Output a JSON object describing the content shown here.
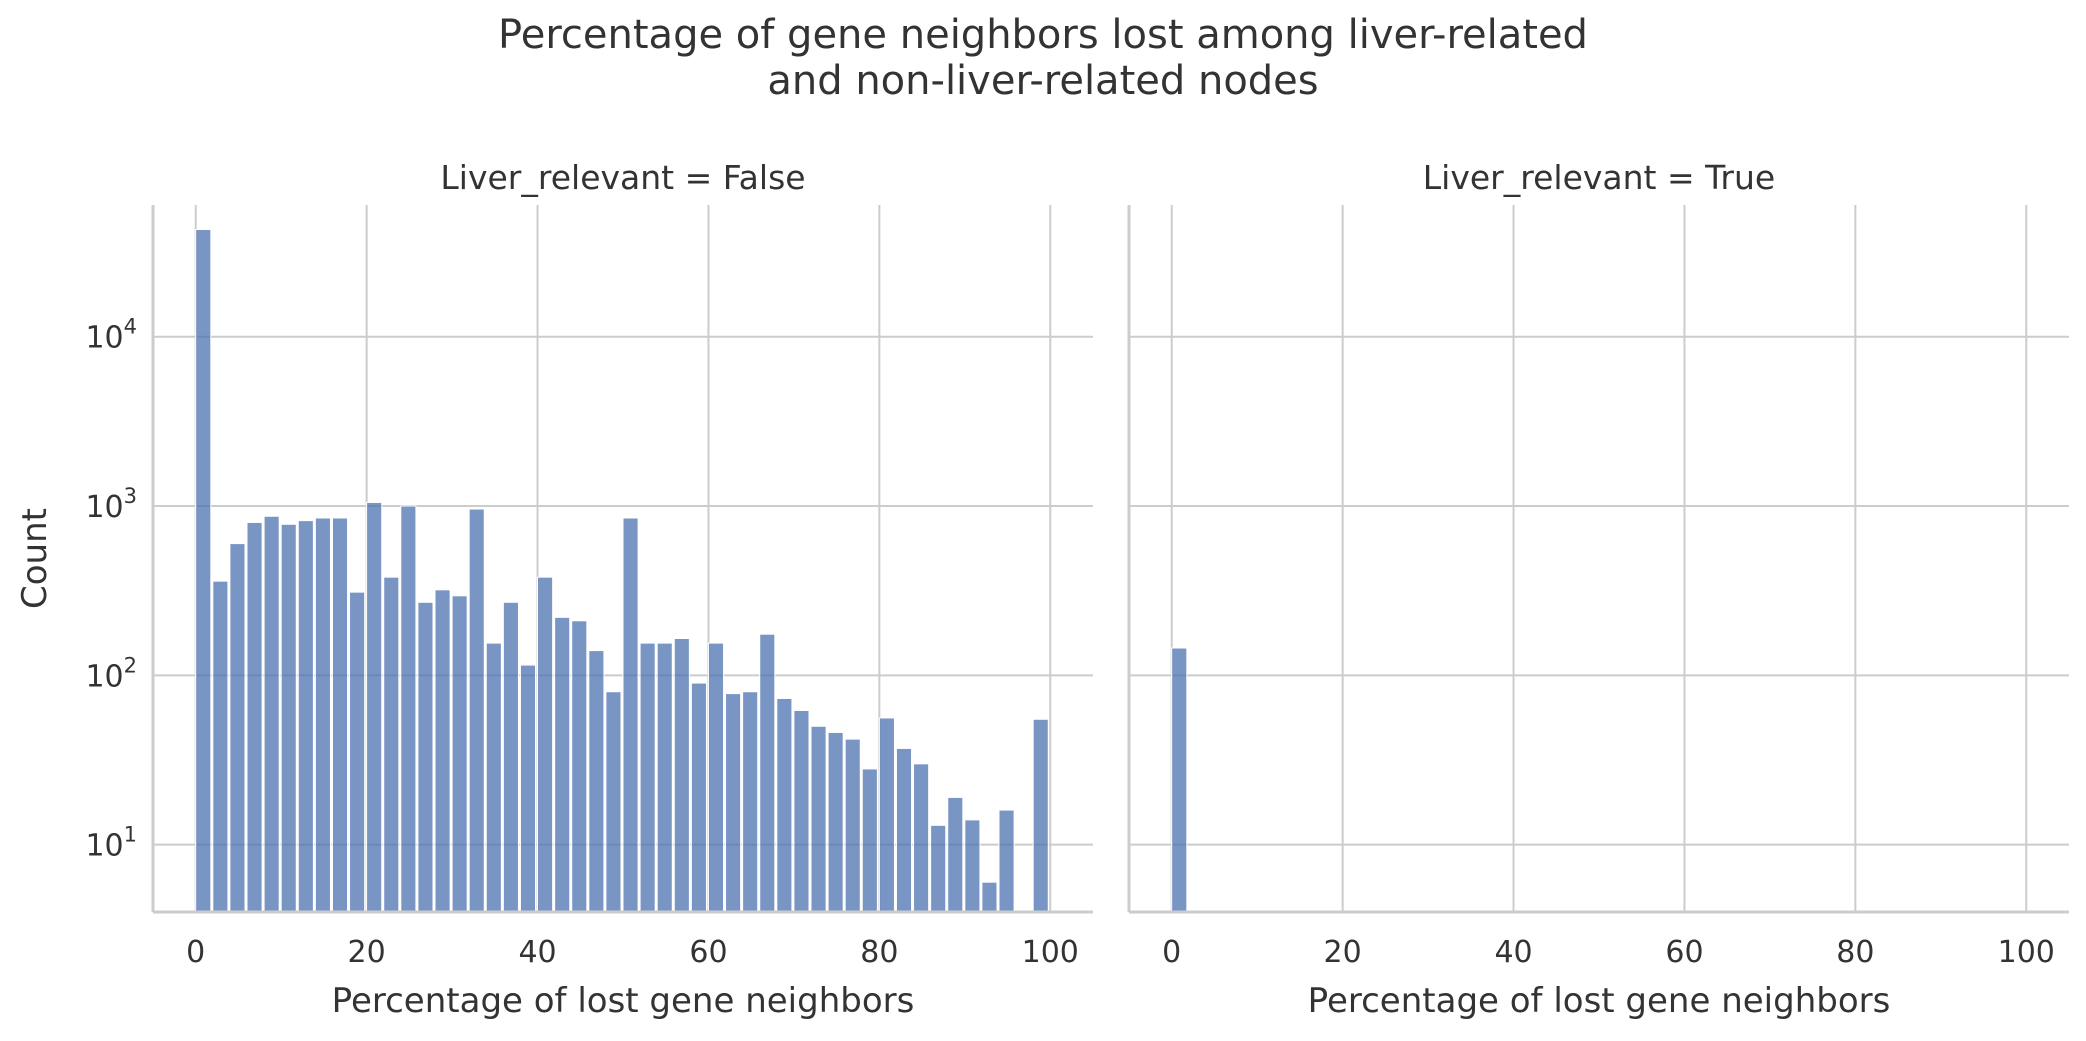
{
  "title_line1": "Percentage of gene neighbors lost among liver-related",
  "title_line2": "and non-liver-related nodes",
  "colors": {
    "bar": "#4c72b0",
    "grid": "#cccccc",
    "axis": "#cccccc",
    "text": "#333333"
  },
  "chart_data": {
    "type": "bar",
    "scale_y": "log",
    "ylim": [
      4,
      60000
    ],
    "xlim": [
      -5,
      105
    ],
    "bin_width": 2,
    "bin_left_edges": [
      0,
      2,
      4,
      6,
      8,
      10,
      12,
      14,
      16,
      18,
      20,
      22,
      24,
      26,
      28,
      30,
      32,
      34,
      36,
      38,
      40,
      42,
      44,
      46,
      48,
      50,
      52,
      54,
      56,
      58,
      60,
      62,
      64,
      66,
      68,
      70,
      72,
      74,
      76,
      78,
      80,
      82,
      84,
      86,
      88,
      90,
      92,
      94,
      96,
      98
    ],
    "ylabel": "Count",
    "y_ticks": [
      {
        "value": 10,
        "base": "10",
        "exp": "1"
      },
      {
        "value": 100,
        "base": "10",
        "exp": "2"
      },
      {
        "value": 1000,
        "base": "10",
        "exp": "3"
      },
      {
        "value": 10000,
        "base": "10",
        "exp": "4"
      }
    ],
    "x_ticks": [
      0,
      20,
      40,
      60,
      80,
      100
    ],
    "panels": [
      {
        "title": "Liver_relevant = False",
        "xlabel": "Percentage of lost gene neighbors",
        "values": [
          43000,
          360,
          600,
          800,
          870,
          780,
          820,
          850,
          850,
          310,
          1050,
          380,
          1000,
          270,
          320,
          295,
          960,
          155,
          270,
          115,
          380,
          220,
          210,
          140,
          80,
          850,
          155,
          155,
          165,
          90,
          155,
          78,
          80,
          175,
          73,
          62,
          50,
          46,
          42,
          28,
          56,
          37,
          30,
          13,
          19,
          14,
          6,
          16,
          0,
          55
        ]
      },
      {
        "title": "Liver_relevant = True",
        "xlabel": "Percentage of lost gene neighbors",
        "values": [
          145,
          0,
          0,
          0,
          0,
          0,
          0,
          0,
          0,
          0,
          0,
          0,
          0,
          0,
          0,
          0,
          0,
          0,
          0,
          0,
          0,
          0,
          0,
          0,
          0,
          0,
          0,
          0,
          0,
          0,
          0,
          0,
          0,
          0,
          0,
          0,
          0,
          0,
          0,
          0,
          0,
          0,
          0,
          0,
          0,
          0,
          0,
          0,
          0,
          0
        ]
      }
    ]
  }
}
